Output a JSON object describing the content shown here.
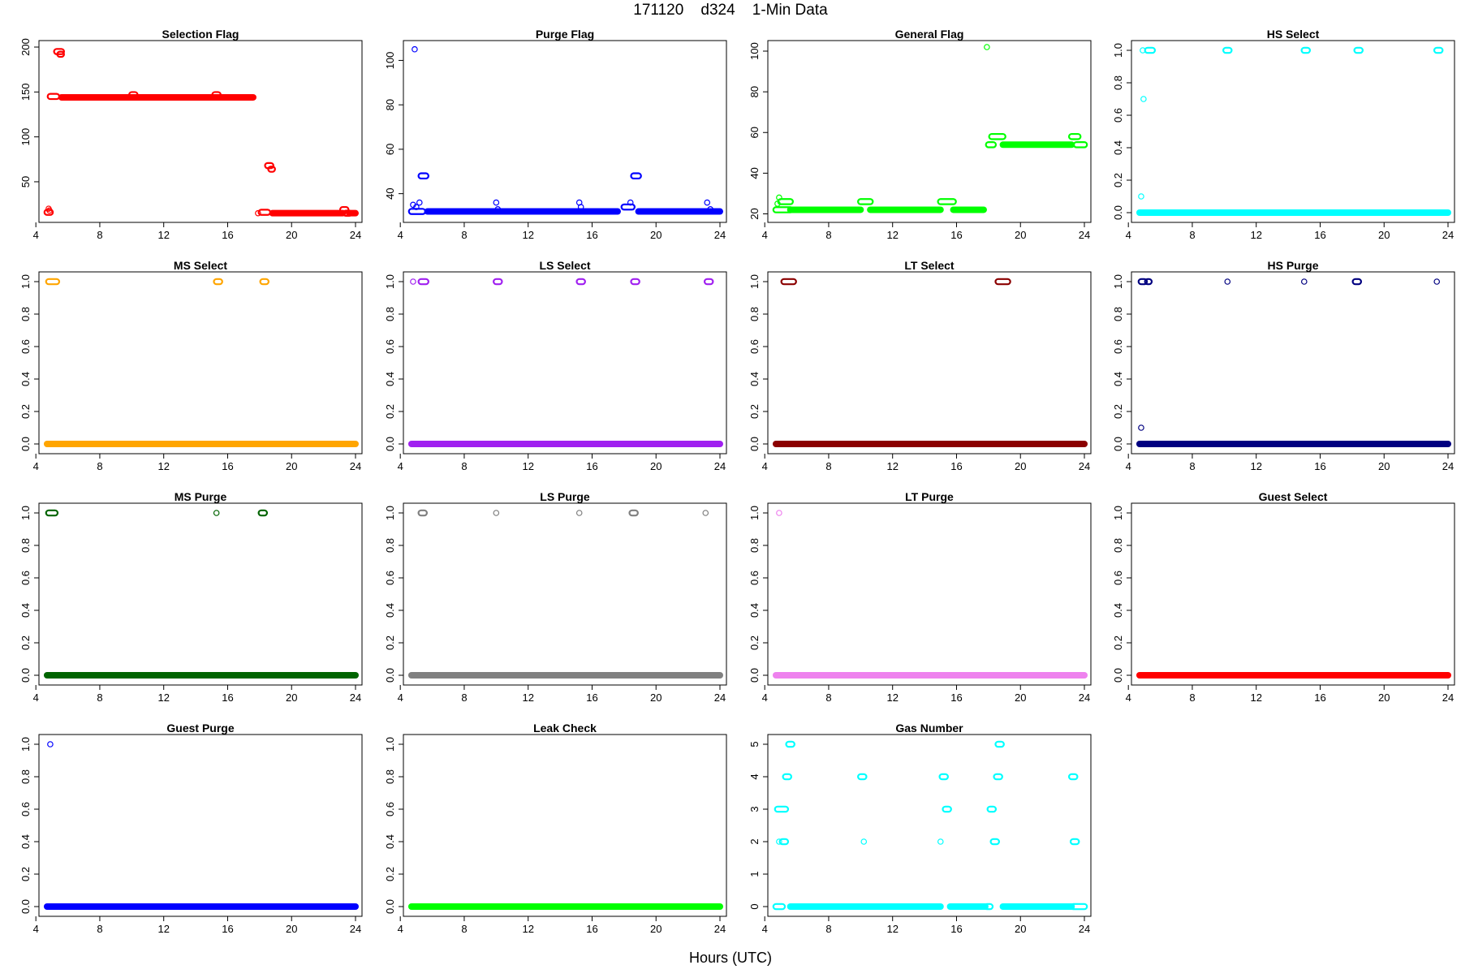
{
  "figure": {
    "title": "171120    d324    1-Min Data",
    "xlabel": "Hours (UTC)"
  },
  "chart_data": [
    {
      "type": "scatter",
      "title": "Selection Flag",
      "color": "#ff0000",
      "xlim": [
        4.6,
        24.0
      ],
      "ylim": [
        12,
        200
      ],
      "xticks": [
        4,
        8,
        12,
        16,
        20,
        24
      ],
      "yticks": [
        50,
        100,
        150,
        200
      ],
      "segments": [
        {
          "x0": 5.6,
          "x1": 17.6,
          "y": 144
        },
        {
          "x0": 18.8,
          "x1": 23.2,
          "y": 15
        },
        {
          "x0": 23.6,
          "x1": 24.0,
          "y": 15
        }
      ],
      "clusters": [
        {
          "x0": 4.7,
          "x1": 4.9,
          "y": 16
        },
        {
          "x0": 4.9,
          "x1": 5.3,
          "y": 145
        },
        {
          "x0": 5.3,
          "x1": 5.6,
          "y": 195
        },
        {
          "x0": 5.5,
          "x1": 5.6,
          "y": 192
        },
        {
          "x0": 10.0,
          "x1": 10.2,
          "y": 147
        },
        {
          "x0": 15.2,
          "x1": 15.4,
          "y": 147
        },
        {
          "x0": 18.1,
          "x1": 18.5,
          "y": 16
        },
        {
          "x0": 18.5,
          "x1": 18.7,
          "y": 68
        },
        {
          "x0": 18.7,
          "x1": 18.8,
          "y": 64
        },
        {
          "x0": 23.2,
          "x1": 23.4,
          "y": 19
        },
        {
          "x0": 23.4,
          "x1": 23.6,
          "y": 15
        }
      ],
      "points": [
        {
          "x": 4.8,
          "y": 20
        },
        {
          "x": 4.85,
          "y": 18
        },
        {
          "x": 17.9,
          "y": 15
        }
      ]
    },
    {
      "type": "scatter",
      "title": "Purge Flag",
      "color": "#0000ff",
      "xlim": [
        4.6,
        24.0
      ],
      "ylim": [
        30,
        106
      ],
      "xticks": [
        4,
        8,
        12,
        16,
        20,
        24
      ],
      "yticks": [
        40,
        60,
        80,
        100
      ],
      "segments": [
        {
          "x0": 5.7,
          "x1": 17.6,
          "y": 32
        },
        {
          "x0": 18.9,
          "x1": 24.0,
          "y": 32
        }
      ],
      "clusters": [
        {
          "x0": 4.7,
          "x1": 5.4,
          "y": 32
        },
        {
          "x0": 5.3,
          "x1": 5.6,
          "y": 48
        },
        {
          "x0": 18.6,
          "x1": 18.9,
          "y": 48
        },
        {
          "x0": 18.0,
          "x1": 18.5,
          "y": 34
        }
      ],
      "points": [
        {
          "x": 4.9,
          "y": 105
        },
        {
          "x": 4.8,
          "y": 35
        },
        {
          "x": 5.0,
          "y": 34
        },
        {
          "x": 5.2,
          "y": 36
        },
        {
          "x": 10.0,
          "y": 36
        },
        {
          "x": 10.1,
          "y": 33
        },
        {
          "x": 15.2,
          "y": 36
        },
        {
          "x": 15.3,
          "y": 34
        },
        {
          "x": 18.4,
          "y": 36
        },
        {
          "x": 23.2,
          "y": 36
        },
        {
          "x": 23.4,
          "y": 33
        }
      ]
    },
    {
      "type": "scatter",
      "title": "General Flag",
      "color": "#00ff00",
      "xlim": [
        4.6,
        24.0
      ],
      "ylim": [
        19,
        102
      ],
      "xticks": [
        4,
        8,
        12,
        16,
        20,
        24
      ],
      "yticks": [
        20,
        40,
        60,
        80,
        100
      ],
      "segments": [
        {
          "x0": 5.6,
          "x1": 10.0,
          "y": 22
        },
        {
          "x0": 10.6,
          "x1": 15.0,
          "y": 22
        },
        {
          "x0": 15.8,
          "x1": 17.7,
          "y": 22
        },
        {
          "x0": 18.9,
          "x1": 23.2,
          "y": 54
        }
      ],
      "clusters": [
        {
          "x0": 4.7,
          "x1": 5.6,
          "y": 22
        },
        {
          "x0": 5.0,
          "x1": 5.6,
          "y": 26
        },
        {
          "x0": 10.0,
          "x1": 10.6,
          "y": 26
        },
        {
          "x0": 15.0,
          "x1": 15.8,
          "y": 26
        },
        {
          "x0": 18.2,
          "x1": 18.9,
          "y": 58
        },
        {
          "x0": 18.0,
          "x1": 18.3,
          "y": 54
        },
        {
          "x0": 23.2,
          "x1": 23.6,
          "y": 58
        },
        {
          "x0": 23.5,
          "x1": 24.0,
          "y": 54
        }
      ],
      "points": [
        {
          "x": 17.9,
          "y": 102
        },
        {
          "x": 4.9,
          "y": 28
        },
        {
          "x": 4.8,
          "y": 25
        }
      ]
    },
    {
      "type": "scatter",
      "title": "HS Select",
      "color": "#00ffff",
      "xlim": [
        4.6,
        24.0
      ],
      "ylim": [
        -0.02,
        1.02
      ],
      "xticks": [
        4,
        8,
        12,
        16,
        20,
        24
      ],
      "yticks": [
        0.0,
        0.2,
        0.4,
        0.6,
        0.8,
        1.0
      ],
      "segments": [
        {
          "x0": 4.7,
          "x1": 24.0,
          "y": 0
        }
      ],
      "clusters": [
        {
          "x0": 5.2,
          "x1": 5.5,
          "y": 1
        },
        {
          "x0": 10.1,
          "x1": 10.3,
          "y": 1
        },
        {
          "x0": 15.0,
          "x1": 15.2,
          "y": 1
        },
        {
          "x0": 18.3,
          "x1": 18.5,
          "y": 1
        },
        {
          "x0": 23.3,
          "x1": 23.5,
          "y": 1
        }
      ],
      "points": [
        {
          "x": 4.9,
          "y": 1
        },
        {
          "x": 4.95,
          "y": 0.7
        },
        {
          "x": 4.8,
          "y": 0.1
        }
      ]
    },
    {
      "type": "scatter",
      "title": "MS Select",
      "color": "#ffa500",
      "xlim": [
        4.6,
        24.0
      ],
      "ylim": [
        -0.02,
        1.02
      ],
      "xticks": [
        4,
        8,
        12,
        16,
        20,
        24
      ],
      "yticks": [
        0.0,
        0.2,
        0.4,
        0.6,
        0.8,
        1.0
      ],
      "segments": [
        {
          "x0": 4.7,
          "x1": 24.0,
          "y": 0
        }
      ],
      "clusters": [
        {
          "x0": 4.8,
          "x1": 5.3,
          "y": 1
        },
        {
          "x0": 15.3,
          "x1": 15.5,
          "y": 1
        },
        {
          "x0": 18.2,
          "x1": 18.4,
          "y": 1
        }
      ],
      "points": []
    },
    {
      "type": "scatter",
      "title": "LS Select",
      "color": "#a020f0",
      "xlim": [
        4.6,
        24.0
      ],
      "ylim": [
        -0.02,
        1.02
      ],
      "xticks": [
        4,
        8,
        12,
        16,
        20,
        24
      ],
      "yticks": [
        0.0,
        0.2,
        0.4,
        0.6,
        0.8,
        1.0
      ],
      "segments": [
        {
          "x0": 4.7,
          "x1": 24.0,
          "y": 0
        }
      ],
      "clusters": [
        {
          "x0": 5.3,
          "x1": 5.6,
          "y": 1
        },
        {
          "x0": 10.0,
          "x1": 10.2,
          "y": 1
        },
        {
          "x0": 15.2,
          "x1": 15.4,
          "y": 1
        },
        {
          "x0": 18.6,
          "x1": 18.8,
          "y": 1
        },
        {
          "x0": 23.2,
          "x1": 23.4,
          "y": 1
        }
      ],
      "points": [
        {
          "x": 4.8,
          "y": 1
        }
      ]
    },
    {
      "type": "scatter",
      "title": "LT Select",
      "color": "#8b0000",
      "xlim": [
        4.6,
        24.0
      ],
      "ylim": [
        -0.02,
        1.02
      ],
      "xticks": [
        4,
        8,
        12,
        16,
        20,
        24
      ],
      "yticks": [
        0.0,
        0.2,
        0.4,
        0.6,
        0.8,
        1.0
      ],
      "segments": [
        {
          "x0": 4.7,
          "x1": 24.0,
          "y": 0
        }
      ],
      "clusters": [
        {
          "x0": 5.2,
          "x1": 5.8,
          "y": 1
        },
        {
          "x0": 18.6,
          "x1": 19.2,
          "y": 1
        }
      ],
      "points": []
    },
    {
      "type": "scatter",
      "title": "HS Purge",
      "color": "#000080",
      "xlim": [
        4.6,
        24.0
      ],
      "ylim": [
        -0.02,
        1.02
      ],
      "xticks": [
        4,
        8,
        12,
        16,
        20,
        24
      ],
      "yticks": [
        0.0,
        0.2,
        0.4,
        0.6,
        0.8,
        1.0
      ],
      "segments": [
        {
          "x0": 4.7,
          "x1": 24.0,
          "y": 0
        }
      ],
      "clusters": [
        {
          "x0": 4.8,
          "x1": 5.0,
          "y": 1
        },
        {
          "x0": 5.2,
          "x1": 5.3,
          "y": 1
        },
        {
          "x0": 18.2,
          "x1": 18.4,
          "y": 1
        }
      ],
      "points": [
        {
          "x": 4.8,
          "y": 0.1
        },
        {
          "x": 10.2,
          "y": 1
        },
        {
          "x": 15.0,
          "y": 1
        },
        {
          "x": 23.3,
          "y": 1
        }
      ]
    },
    {
      "type": "scatter",
      "title": "MS Purge",
      "color": "#006400",
      "xlim": [
        4.6,
        24.0
      ],
      "ylim": [
        -0.02,
        1.02
      ],
      "xticks": [
        4,
        8,
        12,
        16,
        20,
        24
      ],
      "yticks": [
        0.0,
        0.2,
        0.4,
        0.6,
        0.8,
        1.0
      ],
      "segments": [
        {
          "x0": 4.7,
          "x1": 24.0,
          "y": 0
        }
      ],
      "clusters": [
        {
          "x0": 4.8,
          "x1": 5.2,
          "y": 1
        },
        {
          "x0": 18.1,
          "x1": 18.3,
          "y": 1
        }
      ],
      "points": [
        {
          "x": 15.3,
          "y": 1
        }
      ]
    },
    {
      "type": "scatter",
      "title": "LS Purge",
      "color": "#808080",
      "xlim": [
        4.6,
        24.0
      ],
      "ylim": [
        -0.02,
        1.02
      ],
      "xticks": [
        4,
        8,
        12,
        16,
        20,
        24
      ],
      "yticks": [
        0.0,
        0.2,
        0.4,
        0.6,
        0.8,
        1.0
      ],
      "segments": [
        {
          "x0": 4.7,
          "x1": 24.0,
          "y": 0
        }
      ],
      "clusters": [
        {
          "x0": 5.3,
          "x1": 5.5,
          "y": 1
        },
        {
          "x0": 18.5,
          "x1": 18.7,
          "y": 1
        }
      ],
      "points": [
        {
          "x": 10.0,
          "y": 1
        },
        {
          "x": 15.2,
          "y": 1
        },
        {
          "x": 23.1,
          "y": 1
        }
      ]
    },
    {
      "type": "scatter",
      "title": "LT Purge",
      "color": "#ee82ee",
      "xlim": [
        4.6,
        24.0
      ],
      "ylim": [
        -0.02,
        1.02
      ],
      "xticks": [
        4,
        8,
        12,
        16,
        20,
        24
      ],
      "yticks": [
        0.0,
        0.2,
        0.4,
        0.6,
        0.8,
        1.0
      ],
      "segments": [
        {
          "x0": 4.7,
          "x1": 24.0,
          "y": 0
        }
      ],
      "clusters": [],
      "points": [
        {
          "x": 4.9,
          "y": 1
        }
      ]
    },
    {
      "type": "scatter",
      "title": "Guest Select",
      "color": "#ff0000",
      "xlim": [
        4.6,
        24.0
      ],
      "ylim": [
        -0.02,
        1.02
      ],
      "xticks": [
        4,
        8,
        12,
        16,
        20,
        24
      ],
      "yticks": [
        0.0,
        0.2,
        0.4,
        0.6,
        0.8,
        1.0
      ],
      "segments": [
        {
          "x0": 4.7,
          "x1": 24.0,
          "y": 0
        }
      ],
      "clusters": [],
      "points": []
    },
    {
      "type": "scatter",
      "title": "Guest Purge",
      "color": "#0000ff",
      "xlim": [
        4.6,
        24.0
      ],
      "ylim": [
        -0.02,
        1.02
      ],
      "xticks": [
        4,
        8,
        12,
        16,
        20,
        24
      ],
      "yticks": [
        0.0,
        0.2,
        0.4,
        0.6,
        0.8,
        1.0
      ],
      "segments": [
        {
          "x0": 4.7,
          "x1": 24.0,
          "y": 0
        }
      ],
      "clusters": [],
      "points": [
        {
          "x": 4.9,
          "y": 1
        }
      ]
    },
    {
      "type": "scatter",
      "title": "Leak Check",
      "color": "#00ff00",
      "xlim": [
        4.6,
        24.0
      ],
      "ylim": [
        -0.02,
        1.02
      ],
      "xticks": [
        4,
        8,
        12,
        16,
        20,
        24
      ],
      "yticks": [
        0.0,
        0.2,
        0.4,
        0.6,
        0.8,
        1.0
      ],
      "segments": [
        {
          "x0": 4.7,
          "x1": 24.0,
          "y": 0
        }
      ],
      "clusters": [],
      "points": []
    },
    {
      "type": "scatter",
      "title": "Gas Number",
      "color": "#00ffff",
      "xlim": [
        4.6,
        24.0
      ],
      "ylim": [
        -0.1,
        5.1
      ],
      "xticks": [
        4,
        8,
        12,
        16,
        20,
        24
      ],
      "yticks": [
        0,
        1,
        2,
        3,
        4,
        5
      ],
      "segments": [
        {
          "x0": 5.6,
          "x1": 15.0,
          "y": 0
        },
        {
          "x0": 15.6,
          "x1": 17.8,
          "y": 0
        },
        {
          "x0": 18.9,
          "x1": 23.2,
          "y": 0
        }
      ],
      "clusters": [
        {
          "x0": 4.7,
          "x1": 5.1,
          "y": 0
        },
        {
          "x0": 23.3,
          "x1": 24.0,
          "y": 0
        },
        {
          "x0": 5.5,
          "x1": 5.7,
          "y": 5
        },
        {
          "x0": 5.3,
          "x1": 5.5,
          "y": 4
        },
        {
          "x0": 4.8,
          "x1": 5.3,
          "y": 3
        },
        {
          "x0": 5.1,
          "x1": 5.3,
          "y": 2
        },
        {
          "x0": 10.0,
          "x1": 10.2,
          "y": 4
        },
        {
          "x0": 15.1,
          "x1": 15.3,
          "y": 4
        },
        {
          "x0": 15.3,
          "x1": 15.5,
          "y": 3
        },
        {
          "x0": 18.6,
          "x1": 18.8,
          "y": 5
        },
        {
          "x0": 18.5,
          "x1": 18.7,
          "y": 4
        },
        {
          "x0": 18.1,
          "x1": 18.3,
          "y": 3
        },
        {
          "x0": 18.3,
          "x1": 18.5,
          "y": 2
        },
        {
          "x0": 23.2,
          "x1": 23.4,
          "y": 4
        },
        {
          "x0": 23.3,
          "x1": 23.5,
          "y": 2
        },
        {
          "x0": 17.9,
          "x1": 18.1,
          "y": 0
        }
      ],
      "points": [
        {
          "x": 10.2,
          "y": 2
        },
        {
          "x": 15.0,
          "y": 2
        },
        {
          "x": 4.9,
          "y": 2
        }
      ]
    }
  ]
}
